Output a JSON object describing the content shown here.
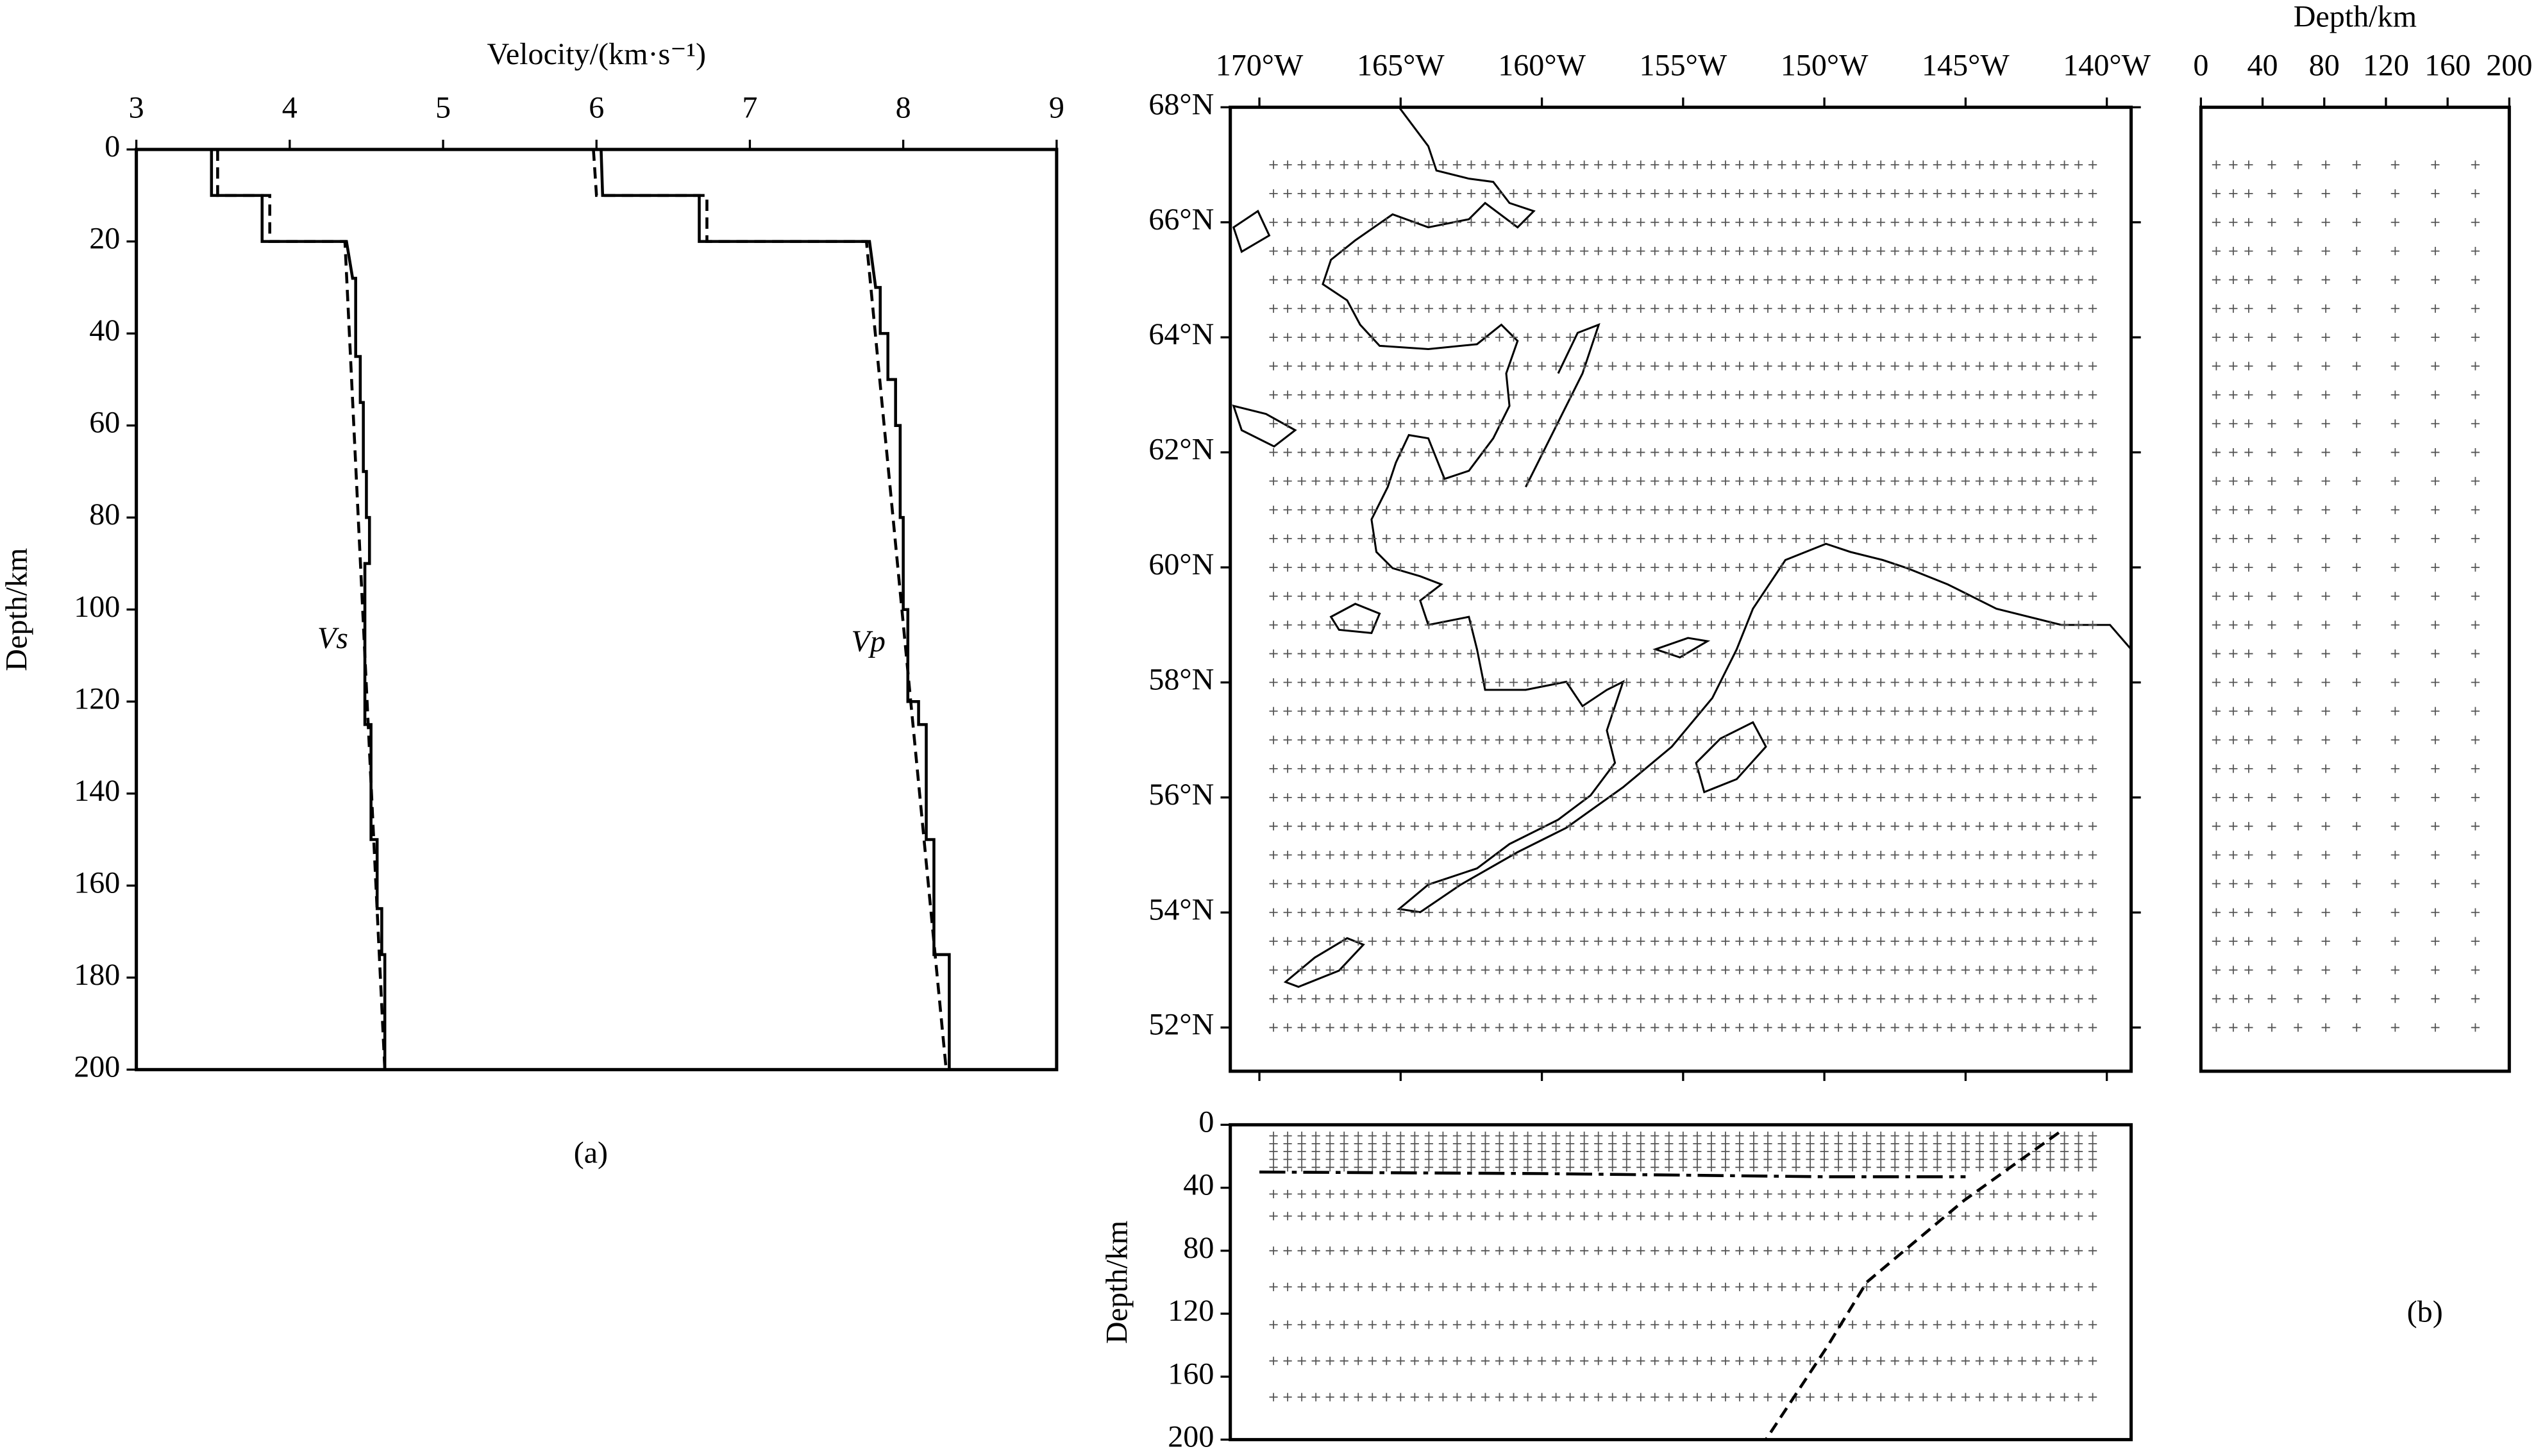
{
  "chart_data": [
    {
      "type": "line",
      "xlabel": "Velocity/(km·s⁻¹)",
      "ylabel": "Depth/km",
      "xlim": [
        3,
        9
      ],
      "xticks": [
        3,
        4,
        5,
        6,
        7,
        8,
        9
      ],
      "ylim": [
        0,
        200
      ],
      "yticks": [
        0,
        20,
        40,
        60,
        80,
        100,
        120,
        140,
        160,
        180,
        200
      ],
      "y_inverted": true,
      "annotations": [
        "Vs",
        "Vp"
      ],
      "series": [
        {
          "style": "solid",
          "color": "#000000",
          "x": [
            3.49,
            3.49,
            3.82,
            3.82,
            4.37,
            4.41,
            4.43,
            4.43,
            4.46,
            4.46,
            4.48,
            4.48,
            4.5,
            4.5,
            4.52,
            4.52,
            4.49,
            4.49,
            4.53,
            4.53,
            4.57,
            4.57,
            4.6,
            4.6,
            4.62,
            4.62
          ],
          "values": [
            0,
            10,
            10,
            20,
            20,
            28,
            28,
            45,
            45,
            55,
            55,
            70,
            70,
            80,
            80,
            90,
            90,
            125,
            125,
            150,
            150,
            165,
            165,
            175,
            175,
            200
          ]
        },
        {
          "style": "dashed",
          "color": "#000000",
          "x": [
            3.53,
            3.53,
            3.87,
            3.87,
            4.36,
            4.62
          ],
          "values": [
            0,
            10,
            10,
            20,
            20,
            200
          ]
        },
        {
          "style": "solid",
          "color": "#000000",
          "x": [
            6.03,
            6.04,
            6.67,
            6.67,
            7.78,
            7.82,
            7.85,
            7.85,
            7.9,
            7.9,
            7.95,
            7.95,
            7.98,
            7.98,
            8.0,
            8.0,
            8.03,
            8.03,
            8.1,
            8.1,
            8.15,
            8.15,
            8.2,
            8.2,
            8.3,
            8.3
          ],
          "values": [
            0,
            10,
            10,
            20,
            20,
            30,
            30,
            40,
            40,
            50,
            50,
            60,
            60,
            80,
            80,
            100,
            100,
            120,
            120,
            125,
            125,
            150,
            150,
            175,
            175,
            200
          ]
        },
        {
          "style": "dashed",
          "color": "#000000",
          "x": [
            5.98,
            6.0,
            6.72,
            6.72,
            7.76,
            8.28
          ],
          "values": [
            0,
            10,
            10,
            20,
            20,
            200
          ]
        }
      ]
    },
    {
      "type": "map",
      "xlim": [
        -171.03,
        -139.14
      ],
      "xticks": [
        {
          "value": -170,
          "label": "170°W"
        },
        {
          "value": -165,
          "label": "165°W"
        },
        {
          "value": -160,
          "label": "160°W"
        },
        {
          "value": -155,
          "label": "155°W"
        },
        {
          "value": -150,
          "label": "150°W"
        },
        {
          "value": -145,
          "label": "145°W"
        },
        {
          "value": -140,
          "label": "140°W"
        }
      ],
      "ylim": [
        51.24,
        68
      ],
      "yticks": [
        {
          "value": 68,
          "label": "68°N"
        },
        {
          "value": 66,
          "label": "66°N"
        },
        {
          "value": 64,
          "label": "64°N"
        },
        {
          "value": 62,
          "label": "62°N"
        },
        {
          "value": 60,
          "label": "60°N"
        },
        {
          "value": 58,
          "label": "58°N"
        },
        {
          "value": 56,
          "label": "56°N"
        },
        {
          "value": 54,
          "label": "54°N"
        },
        {
          "value": 52,
          "label": "52°N"
        }
      ]
    },
    {
      "type": "grid",
      "xlabel": "Depth/km",
      "xlim": [
        0,
        200
      ],
      "xticks": [
        0,
        40,
        80,
        120,
        160,
        200
      ],
      "ylim": [
        51.24,
        68
      ]
    },
    {
      "type": "line",
      "ylabel": "Depth/km",
      "xlim": [
        -171.03,
        -139.14
      ],
      "ylim": [
        0,
        200
      ],
      "yticks": [
        0,
        40,
        80,
        120,
        160,
        200
      ],
      "y_inverted": true,
      "series": [
        {
          "style": "dashdot",
          "color": "#000000",
          "x": [
            -170,
            -160,
            -150,
            -145
          ],
          "values": [
            30,
            31,
            33,
            33
          ]
        },
        {
          "style": "dashed",
          "color": "#000000",
          "x": [
            -141.7,
            -145.05,
            -148.5,
            -149.9,
            -152.07
          ],
          "values": [
            5,
            48,
            100,
            141,
            200
          ]
        }
      ]
    }
  ],
  "labels": [
    "(a)",
    "(b)"
  ]
}
